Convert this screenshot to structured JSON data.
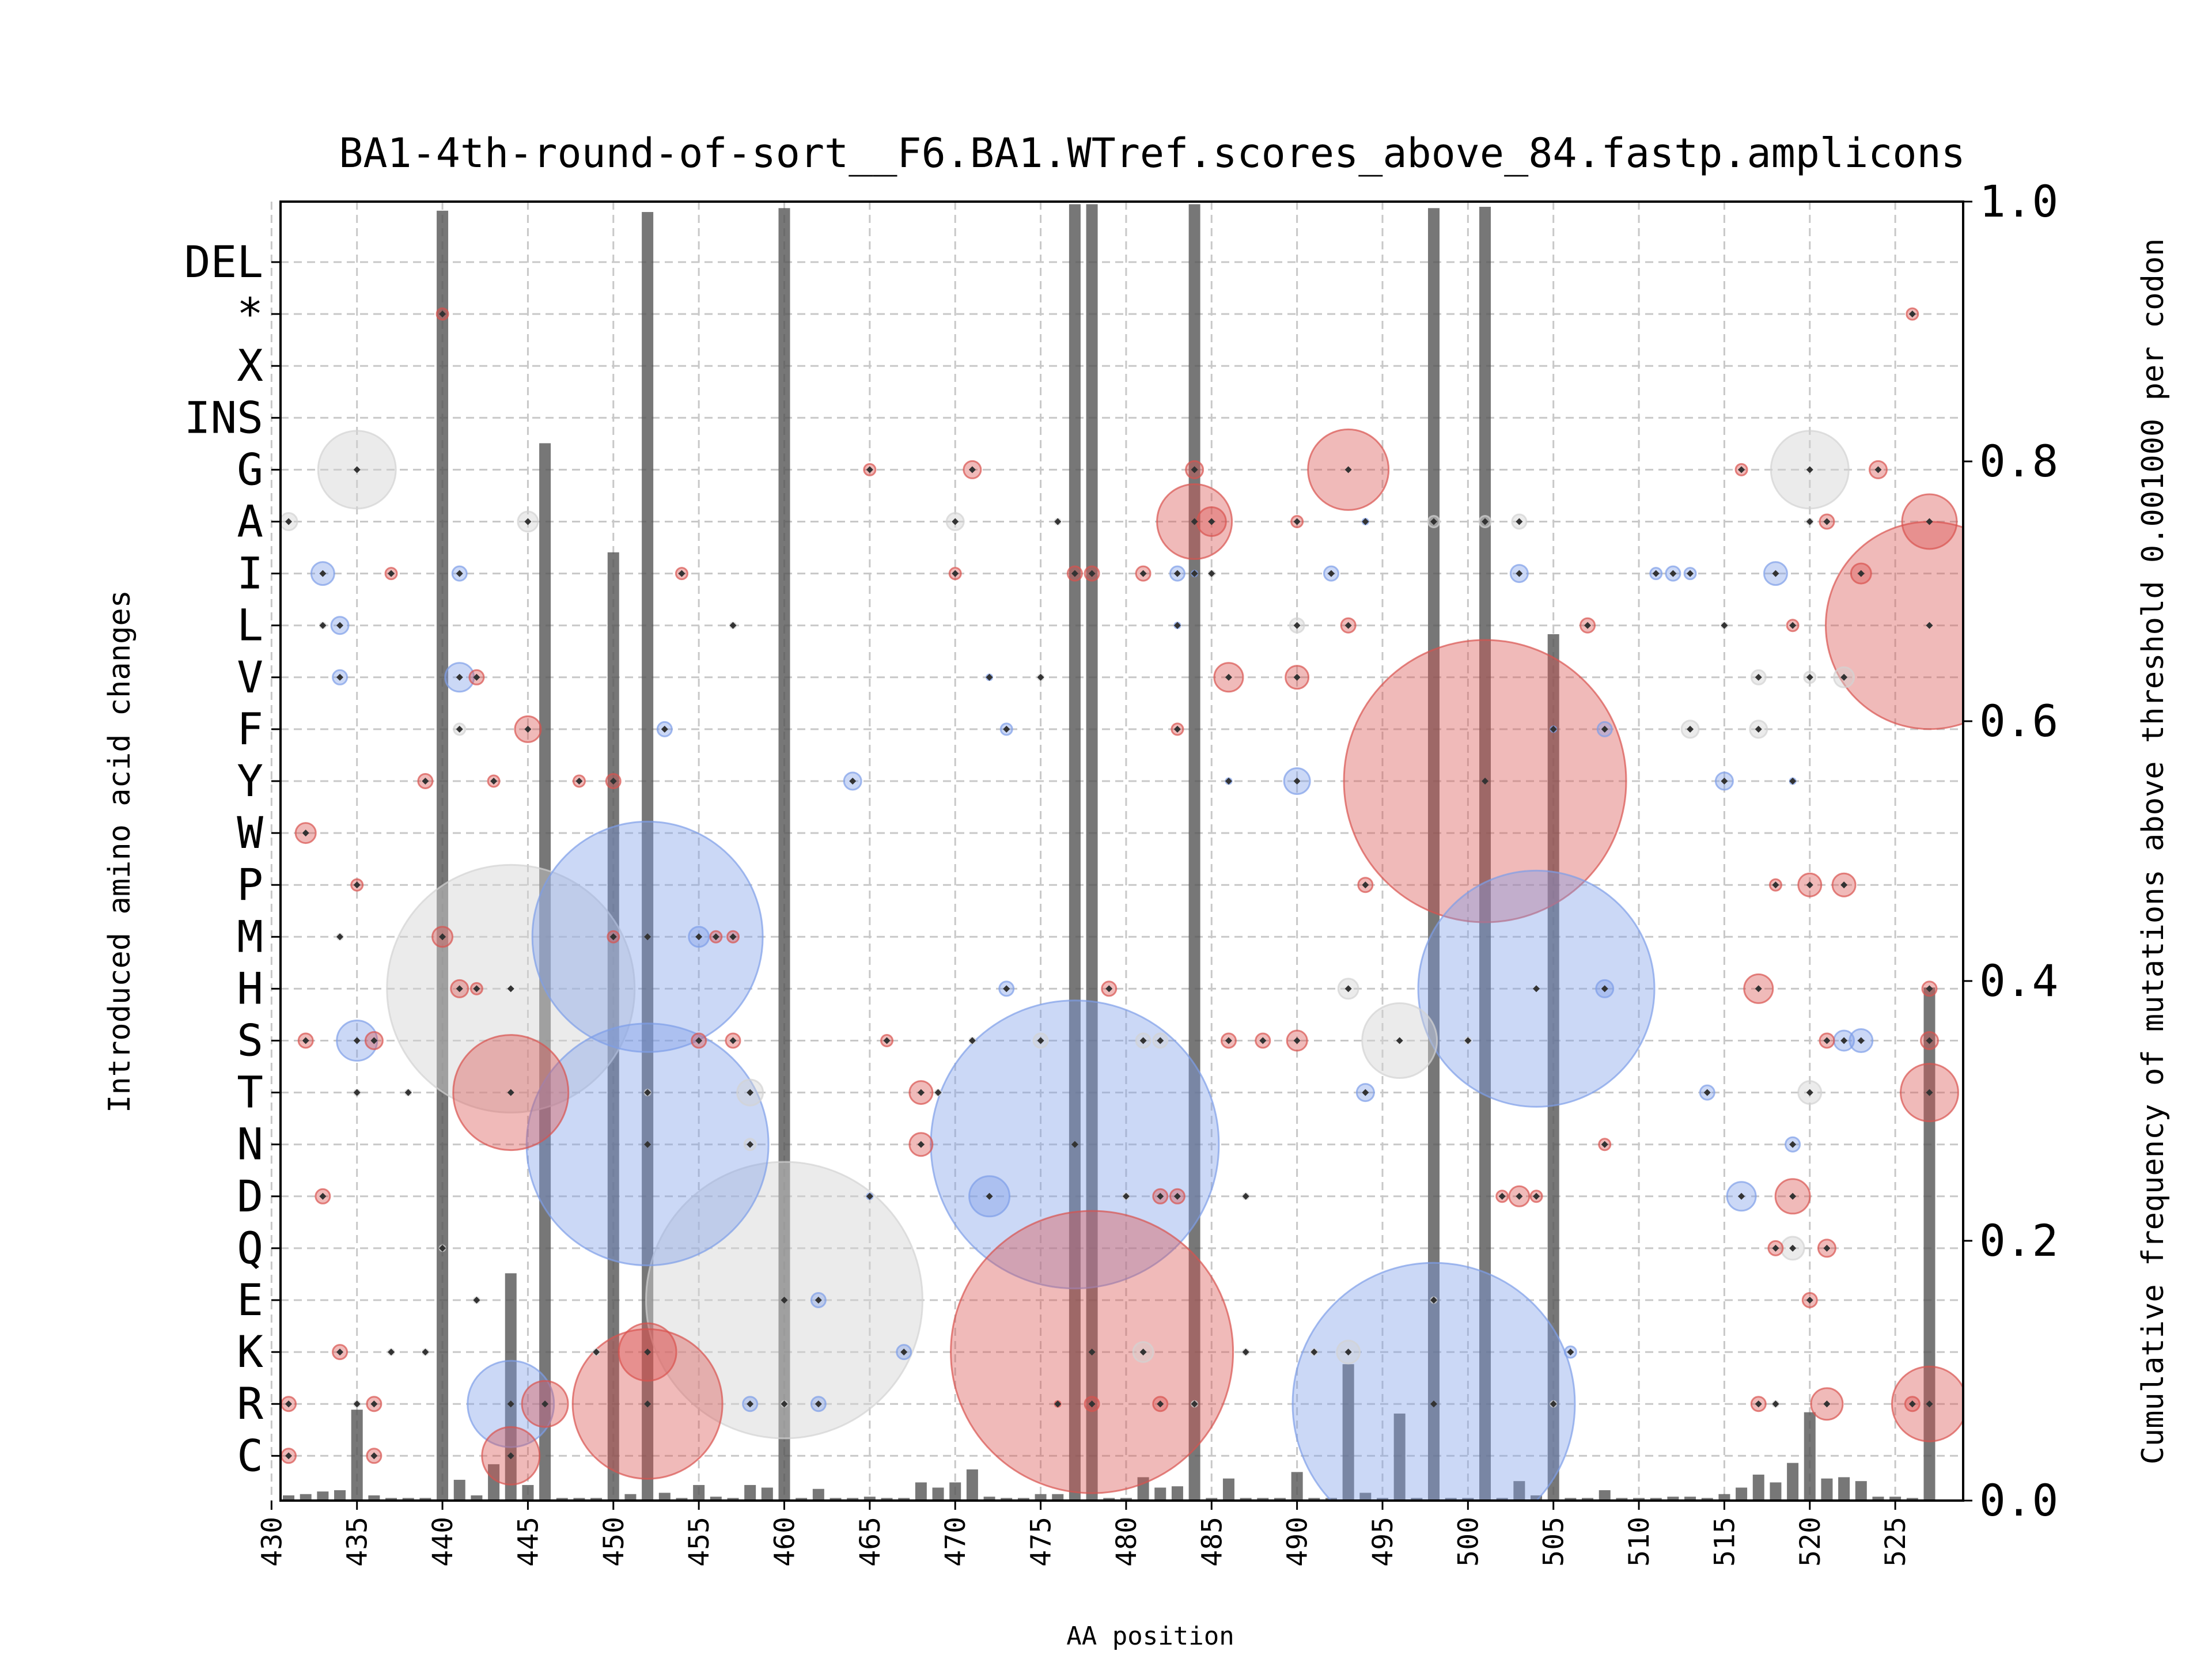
{
  "chart_data": {
    "type": "scatter",
    "title": "BA1-4th-round-of-sort__F6.BA1.WTref.scores_above_84.fastp.amplicons",
    "xlabel": "AA position",
    "ylabel": "Introduced amino acid changes",
    "y2label": "Cumulative frequency of mutations above threshold 0.001000 per codon",
    "xlim": [
      430,
      528
    ],
    "xticks": [
      430,
      435,
      440,
      445,
      450,
      455,
      460,
      465,
      470,
      475,
      480,
      485,
      490,
      495,
      500,
      505,
      510,
      515,
      520,
      525
    ],
    "categories": [
      "DEL",
      "*",
      "X",
      "INS",
      "G",
      "A",
      "I",
      "L",
      "V",
      "F",
      "Y",
      "W",
      "P",
      "M",
      "H",
      "S",
      "T",
      "N",
      "D",
      "Q",
      "E",
      "K",
      "R",
      "C"
    ],
    "y2lim": [
      0.0,
      1.0
    ],
    "y2ticks": [
      "0.0",
      "0.2",
      "0.4",
      "0.6",
      "0.8",
      "1.0"
    ],
    "grid": true,
    "colors": {
      "increase": "#d9534f",
      "decrease": "#7d9ee8",
      "neutral": "#d3d3d3",
      "bar": "#555555",
      "dot": "#333333"
    },
    "bars": [
      [
        431,
        0.004
      ],
      [
        432,
        0.005
      ],
      [
        433,
        0.007
      ],
      [
        434,
        0.008
      ],
      [
        435,
        0.07
      ],
      [
        436,
        0.004
      ],
      [
        437,
        0.002
      ],
      [
        438,
        0.002
      ],
      [
        439,
        0.002
      ],
      [
        440,
        0.993
      ],
      [
        441,
        0.016
      ],
      [
        442,
        0.004
      ],
      [
        443,
        0.028
      ],
      [
        444,
        0.175
      ],
      [
        445,
        0.012
      ],
      [
        446,
        0.814
      ],
      [
        447,
        0.002
      ],
      [
        448,
        0.002
      ],
      [
        449,
        0.002
      ],
      [
        450,
        0.73
      ],
      [
        451,
        0.005
      ],
      [
        452,
        0.992
      ],
      [
        453,
        0.006
      ],
      [
        454,
        0.002
      ],
      [
        455,
        0.012
      ],
      [
        456,
        0.003
      ],
      [
        457,
        0.002
      ],
      [
        458,
        0.012
      ],
      [
        459,
        0.01
      ],
      [
        460,
        0.995
      ],
      [
        461,
        0.002
      ],
      [
        462,
        0.009
      ],
      [
        463,
        0.002
      ],
      [
        464,
        0.002
      ],
      [
        465,
        0.003
      ],
      [
        466,
        0.002
      ],
      [
        467,
        0.002
      ],
      [
        468,
        0.014
      ],
      [
        469,
        0.01
      ],
      [
        470,
        0.014
      ],
      [
        471,
        0.024
      ],
      [
        472,
        0.003
      ],
      [
        473,
        0.002
      ],
      [
        474,
        0.002
      ],
      [
        475,
        0.005
      ],
      [
        476,
        0.005
      ],
      [
        477,
        0.998
      ],
      [
        478,
        0.998
      ],
      [
        479,
        0.002
      ],
      [
        480,
        0.002
      ],
      [
        481,
        0.018
      ],
      [
        482,
        0.01
      ],
      [
        483,
        0.011
      ],
      [
        484,
        0.998
      ],
      [
        485,
        0.002
      ],
      [
        486,
        0.017
      ],
      [
        487,
        0.002
      ],
      [
        488,
        0.002
      ],
      [
        489,
        0.002
      ],
      [
        490,
        0.022
      ],
      [
        491,
        0.002
      ],
      [
        492,
        0.002
      ],
      [
        493,
        0.105
      ],
      [
        494,
        0.006
      ],
      [
        495,
        0.002
      ],
      [
        496,
        0.067
      ],
      [
        497,
        0.002
      ],
      [
        498,
        0.995
      ],
      [
        499,
        0.002
      ],
      [
        500,
        0.002
      ],
      [
        501,
        0.996
      ],
      [
        502,
        0.002
      ],
      [
        503,
        0.015
      ],
      [
        504,
        0.004
      ],
      [
        505,
        0.667
      ],
      [
        506,
        0.002
      ],
      [
        507,
        0.002
      ],
      [
        508,
        0.008
      ],
      [
        509,
        0.002
      ],
      [
        510,
        0.002
      ],
      [
        511,
        0.002
      ],
      [
        512,
        0.003
      ],
      [
        513,
        0.003
      ],
      [
        514,
        0.002
      ],
      [
        515,
        0.005
      ],
      [
        516,
        0.01
      ],
      [
        517,
        0.02
      ],
      [
        518,
        0.014
      ],
      [
        519,
        0.029
      ],
      [
        520,
        0.068
      ],
      [
        521,
        0.017
      ],
      [
        522,
        0.018
      ],
      [
        523,
        0.015
      ],
      [
        524,
        0.003
      ],
      [
        525,
        0.003
      ],
      [
        526,
        0.002
      ],
      [
        527,
        0.395
      ]
    ],
    "bubbles": [
      [
        431,
        "A",
        6,
        "n"
      ],
      [
        435,
        "G",
        27,
        "n"
      ],
      [
        431,
        "R",
        5,
        "i"
      ],
      [
        431,
        "C",
        5,
        "i"
      ],
      [
        432,
        "S",
        5,
        "i"
      ],
      [
        432,
        "W",
        7,
        "i"
      ],
      [
        433,
        "I",
        8,
        "d"
      ],
      [
        433,
        "L",
        2,
        "n"
      ],
      [
        433,
        "D",
        5,
        "i"
      ],
      [
        434,
        "L",
        6,
        "d"
      ],
      [
        434,
        "V",
        5,
        "d"
      ],
      [
        434,
        "M",
        2,
        "n"
      ],
      [
        434,
        "K",
        5,
        "i"
      ],
      [
        435,
        "P",
        4,
        "i"
      ],
      [
        435,
        "S",
        14,
        "d"
      ],
      [
        435,
        "T",
        2,
        "n"
      ],
      [
        435,
        "R",
        2,
        "n"
      ],
      [
        436,
        "S",
        6,
        "i"
      ],
      [
        436,
        "R",
        5,
        "i"
      ],
      [
        436,
        "C",
        5,
        "i"
      ],
      [
        437,
        "I",
        4,
        "i"
      ],
      [
        437,
        "K",
        2,
        "n"
      ],
      [
        438,
        "T",
        2,
        "n"
      ],
      [
        439,
        "Y",
        5,
        "i"
      ],
      [
        439,
        "K",
        2,
        "n"
      ],
      [
        440,
        "*",
        4,
        "i"
      ],
      [
        440,
        "M",
        7,
        "i"
      ],
      [
        440,
        "Q",
        2,
        "n"
      ],
      [
        441,
        "I",
        5,
        "d"
      ],
      [
        441,
        "V",
        10,
        "d"
      ],
      [
        441,
        "H",
        6,
        "i"
      ],
      [
        441,
        "F",
        4,
        "n"
      ],
      [
        442,
        "V",
        5,
        "i"
      ],
      [
        442,
        "H",
        4,
        "i"
      ],
      [
        442,
        "E",
        2,
        "n"
      ],
      [
        443,
        "Y",
        4,
        "i"
      ],
      [
        444,
        "C",
        20,
        "i"
      ],
      [
        444,
        "T",
        40,
        "i"
      ],
      [
        444,
        "R",
        30,
        "d"
      ],
      [
        444,
        "H",
        86,
        "n"
      ],
      [
        445,
        "F",
        9,
        "i"
      ],
      [
        445,
        "A",
        7,
        "n"
      ],
      [
        446,
        "R",
        16,
        "i"
      ],
      [
        448,
        "Y",
        4,
        "i"
      ],
      [
        449,
        "K",
        2,
        "n"
      ],
      [
        450,
        "Y",
        5,
        "i"
      ],
      [
        450,
        "M",
        4,
        "i"
      ],
      [
        452,
        "M",
        80,
        "d"
      ],
      [
        452,
        "K",
        20,
        "i"
      ],
      [
        452,
        "T",
        2,
        "n"
      ],
      [
        452,
        "R",
        52,
        "i"
      ],
      [
        453,
        "F",
        5,
        "d"
      ],
      [
        454,
        "I",
        4,
        "i"
      ],
      [
        455,
        "S",
        5,
        "i"
      ],
      [
        456,
        "M",
        4,
        "i"
      ],
      [
        457,
        "M",
        4,
        "i"
      ],
      [
        457,
        "L",
        2,
        "n"
      ],
      [
        455,
        "M",
        7,
        "d"
      ],
      [
        452,
        "N",
        84,
        "d"
      ],
      [
        457,
        "S",
        5,
        "i"
      ],
      [
        458,
        "T",
        9,
        "n"
      ],
      [
        458,
        "N",
        4,
        "n"
      ],
      [
        458,
        "R",
        5,
        "d"
      ],
      [
        460,
        "R",
        2,
        "n"
      ],
      [
        460,
        "E",
        96,
        "n"
      ],
      [
        462,
        "E",
        5,
        "d"
      ],
      [
        462,
        "R",
        5,
        "d"
      ],
      [
        464,
        "Y",
        6,
        "d"
      ],
      [
        465,
        "G",
        4,
        "i"
      ],
      [
        465,
        "D",
        2,
        "d"
      ],
      [
        466,
        "S",
        4,
        "i"
      ],
      [
        467,
        "K",
        5,
        "d"
      ],
      [
        468,
        "T",
        8,
        "i"
      ],
      [
        468,
        "N",
        8,
        "i"
      ],
      [
        469,
        "T",
        2,
        "n"
      ],
      [
        470,
        "A",
        6,
        "n"
      ],
      [
        470,
        "I",
        4,
        "i"
      ],
      [
        471,
        "G",
        6,
        "i"
      ],
      [
        471,
        "S",
        2,
        "n"
      ],
      [
        472,
        "D",
        14,
        "d"
      ],
      [
        472,
        "V",
        2,
        "d"
      ],
      [
        473,
        "H",
        5,
        "d"
      ],
      [
        473,
        "F",
        4,
        "d"
      ],
      [
        475,
        "V",
        2,
        "n"
      ],
      [
        475,
        "S",
        5,
        "n"
      ],
      [
        476,
        "A",
        2,
        "n"
      ],
      [
        476,
        "R",
        2,
        "i"
      ],
      [
        477,
        "N",
        100,
        "d"
      ],
      [
        477,
        "I",
        5,
        "i"
      ],
      [
        478,
        "I",
        5,
        "i"
      ],
      [
        478,
        "K",
        98,
        "i"
      ],
      [
        478,
        "R",
        5,
        "i"
      ],
      [
        479,
        "H",
        5,
        "i"
      ],
      [
        480,
        "D",
        2,
        "n"
      ],
      [
        481,
        "I",
        5,
        "i"
      ],
      [
        481,
        "S",
        5,
        "n"
      ],
      [
        481,
        "K",
        7,
        "n"
      ],
      [
        482,
        "S",
        5,
        "n"
      ],
      [
        482,
        "D",
        5,
        "i"
      ],
      [
        482,
        "R",
        5,
        "i"
      ],
      [
        483,
        "D",
        5,
        "i"
      ],
      [
        483,
        "I",
        5,
        "d"
      ],
      [
        483,
        "F",
        4,
        "i"
      ],
      [
        483,
        "L",
        2,
        "d"
      ],
      [
        484,
        "G",
        6,
        "i"
      ],
      [
        484,
        "A",
        26,
        "i"
      ],
      [
        484,
        "I",
        2,
        "d"
      ],
      [
        484,
        "R",
        2,
        "n"
      ],
      [
        485,
        "A",
        10,
        "i"
      ],
      [
        485,
        "I",
        2,
        "n"
      ],
      [
        486,
        "V",
        10,
        "i"
      ],
      [
        486,
        "S",
        5,
        "i"
      ],
      [
        486,
        "Y",
        2,
        "d"
      ],
      [
        487,
        "D",
        2,
        "n"
      ],
      [
        487,
        "K",
        2,
        "n"
      ],
      [
        488,
        "S",
        5,
        "i"
      ],
      [
        490,
        "A",
        4,
        "i"
      ],
      [
        490,
        "L",
        5,
        "n"
      ],
      [
        490,
        "V",
        8,
        "i"
      ],
      [
        490,
        "Y",
        9,
        "d"
      ],
      [
        490,
        "S",
        7,
        "i"
      ],
      [
        491,
        "K",
        2,
        "n"
      ],
      [
        492,
        "I",
        5,
        "d"
      ],
      [
        493,
        "G",
        28,
        "i"
      ],
      [
        493,
        "L",
        5,
        "i"
      ],
      [
        493,
        "H",
        7,
        "n"
      ],
      [
        493,
        "K",
        8,
        "n"
      ],
      [
        494,
        "A",
        2,
        "d"
      ],
      [
        494,
        "P",
        5,
        "i"
      ],
      [
        494,
        "T",
        6,
        "d"
      ],
      [
        496,
        "S",
        26,
        "n"
      ],
      [
        498,
        "A",
        4,
        "n"
      ],
      [
        498,
        "E",
        2,
        "n"
      ],
      [
        498,
        "R",
        98,
        "d"
      ],
      [
        500,
        "S",
        2,
        "n"
      ],
      [
        501,
        "Y",
        98,
        "i"
      ],
      [
        501,
        "A",
        4,
        "n"
      ],
      [
        503,
        "D",
        7,
        "i"
      ],
      [
        503,
        "A",
        5,
        "n"
      ],
      [
        503,
        "I",
        6,
        "d"
      ],
      [
        504,
        "H",
        82,
        "d"
      ],
      [
        502,
        "D",
        4,
        "i"
      ],
      [
        504,
        "D",
        4,
        "i"
      ],
      [
        505,
        "F",
        2,
        "d"
      ],
      [
        505,
        "R",
        2,
        "n"
      ],
      [
        506,
        "K",
        4,
        "d"
      ],
      [
        507,
        "L",
        5,
        "i"
      ],
      [
        508,
        "F",
        5,
        "d"
      ],
      [
        508,
        "N",
        4,
        "i"
      ],
      [
        508,
        "H",
        6,
        "d"
      ],
      [
        511,
        "I",
        4,
        "d"
      ],
      [
        512,
        "I",
        5,
        "d"
      ],
      [
        513,
        "I",
        4,
        "d"
      ],
      [
        513,
        "F",
        6,
        "n"
      ],
      [
        514,
        "T",
        5,
        "d"
      ],
      [
        515,
        "L",
        2,
        "n"
      ],
      [
        515,
        "Y",
        6,
        "d"
      ],
      [
        516,
        "G",
        4,
        "i"
      ],
      [
        516,
        "D",
        10,
        "d"
      ],
      [
        517,
        "V",
        5,
        "n"
      ],
      [
        517,
        "F",
        6,
        "n"
      ],
      [
        517,
        "H",
        10,
        "i"
      ],
      [
        517,
        "R",
        5,
        "i"
      ],
      [
        518,
        "P",
        4,
        "i"
      ],
      [
        518,
        "Q",
        5,
        "i"
      ],
      [
        518,
        "I",
        8,
        "d"
      ],
      [
        518,
        "R",
        2,
        "n"
      ],
      [
        519,
        "L",
        4,
        "i"
      ],
      [
        519,
        "N",
        5,
        "d"
      ],
      [
        519,
        "Y",
        2,
        "d"
      ],
      [
        519,
        "D",
        12,
        "i"
      ],
      [
        519,
        "Q",
        8,
        "n"
      ],
      [
        520,
        "G",
        27,
        "n"
      ],
      [
        520,
        "A",
        2,
        "n"
      ],
      [
        520,
        "V",
        4,
        "n"
      ],
      [
        520,
        "T",
        8,
        "n"
      ],
      [
        520,
        "P",
        8,
        "i"
      ],
      [
        520,
        "E",
        5,
        "i"
      ],
      [
        521,
        "A",
        5,
        "i"
      ],
      [
        521,
        "S",
        5,
        "i"
      ],
      [
        521,
        "Q",
        6,
        "i"
      ],
      [
        521,
        "R",
        11,
        "i"
      ],
      [
        522,
        "S",
        7,
        "d"
      ],
      [
        522,
        "P",
        8,
        "i"
      ],
      [
        522,
        "V",
        7,
        "n"
      ],
      [
        523,
        "I",
        7,
        "i"
      ],
      [
        523,
        "S",
        8,
        "d"
      ],
      [
        524,
        "G",
        6,
        "i"
      ],
      [
        526,
        "*",
        4,
        "i"
      ],
      [
        526,
        "R",
        5,
        "i"
      ],
      [
        527,
        "A",
        19,
        "i"
      ],
      [
        527,
        "L",
        72,
        "i"
      ],
      [
        527,
        "S",
        6,
        "i"
      ],
      [
        527,
        "T",
        20,
        "i"
      ],
      [
        527,
        "H",
        5,
        "i"
      ],
      [
        527,
        "R",
        26,
        "i"
      ]
    ]
  }
}
